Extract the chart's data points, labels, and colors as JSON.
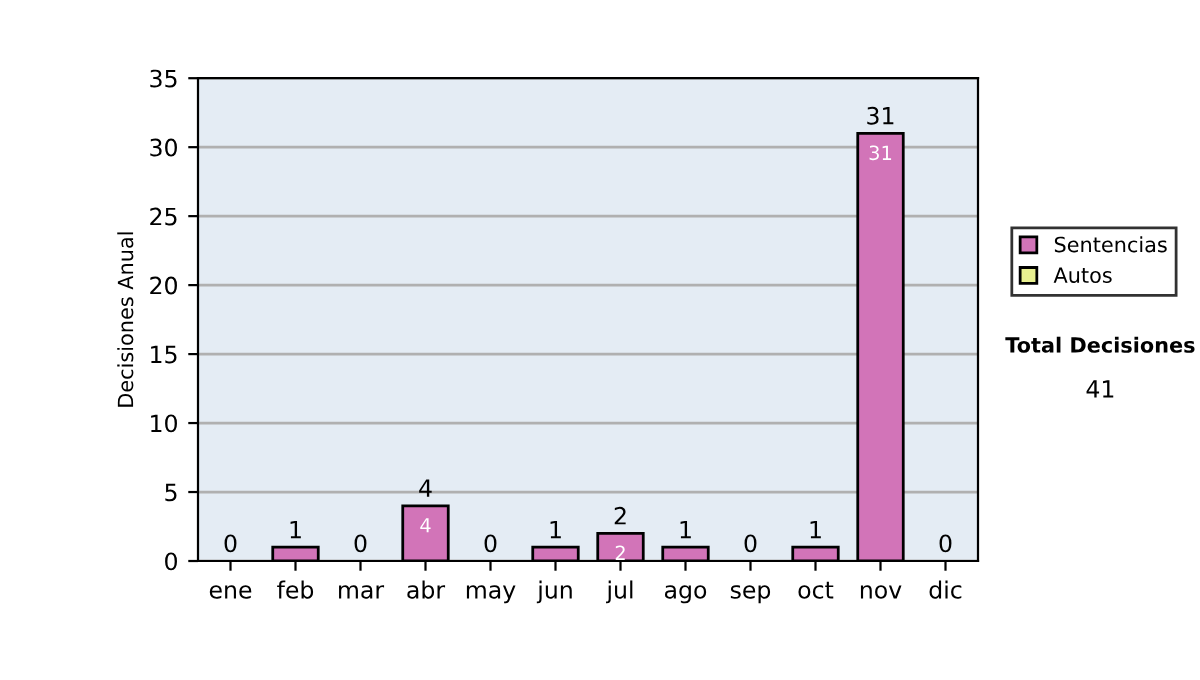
{
  "chart_data": {
    "type": "bar",
    "ylabel": "Decisiones Anual",
    "categories": [
      "ene",
      "feb",
      "mar",
      "abr",
      "may",
      "jun",
      "jul",
      "ago",
      "sep",
      "oct",
      "nov",
      "dic"
    ],
    "series": [
      {
        "name": "Sentencias",
        "color": "#d274b8",
        "values": [
          0,
          1,
          0,
          4,
          0,
          1,
          2,
          1,
          0,
          1,
          31,
          0
        ],
        "value_labels": [
          null,
          null,
          null,
          "4",
          null,
          null,
          "2",
          null,
          null,
          null,
          "31",
          null
        ]
      },
      {
        "name": "Autos",
        "color": "#e8f090",
        "values": [
          0,
          0,
          0,
          0,
          0,
          0,
          0,
          0,
          0,
          0,
          0,
          0
        ]
      }
    ],
    "stacked": true,
    "totals": [
      "0",
      "1",
      "0",
      "4",
      "0",
      "1",
      "2",
      "1",
      "0",
      "1",
      "31",
      "0"
    ],
    "ylim": [
      0,
      35
    ],
    "yticks": [
      0,
      5,
      10,
      15,
      20,
      25,
      30,
      35
    ],
    "grid": "y",
    "legend": "right",
    "annotations": [
      "Total Decisiones",
      "41"
    ]
  }
}
